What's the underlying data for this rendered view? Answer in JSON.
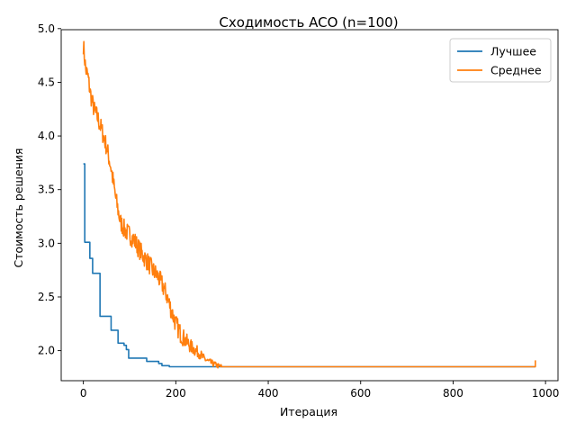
{
  "chart_data": {
    "type": "line",
    "title": "Сходимость ACO (n=100)",
    "xlabel": "Итерация",
    "ylabel": "Стоимость решения",
    "xlim": [
      -48,
      1027
    ],
    "ylim": [
      1.72,
      4.99
    ],
    "xticks": [
      0,
      200,
      400,
      600,
      800,
      1000
    ],
    "yticks": [
      2.0,
      2.5,
      3.0,
      3.5,
      4.0,
      4.5,
      5.0
    ],
    "xtick_labels": [
      "0",
      "200",
      "400",
      "600",
      "800",
      "1000"
    ],
    "ytick_labels": [
      "2.0",
      "2.5",
      "3.0",
      "3.5",
      "4.0",
      "4.5",
      "5.0"
    ],
    "grid": false,
    "legend_position": "top-right",
    "series": [
      {
        "name": "Лучшее",
        "color": "#1f77b4",
        "step": true,
        "x": [
          0,
          3,
          14,
          20,
          33,
          36,
          60,
          75,
          88,
          93,
          98,
          137,
          163,
          170,
          178,
          186,
          978
        ],
        "values": [
          3.74,
          3.01,
          2.86,
          2.72,
          2.72,
          2.32,
          2.19,
          2.07,
          2.05,
          2.01,
          1.93,
          1.9,
          1.88,
          1.86,
          1.86,
          1.85,
          1.85
        ]
      },
      {
        "name": "Среднее",
        "color": "#ff7f0e",
        "step": false,
        "noise": true,
        "x": [
          0,
          5,
          10,
          15,
          20,
          25,
          30,
          40,
          50,
          60,
          70,
          80,
          90,
          100,
          110,
          120,
          130,
          140,
          150,
          160,
          170,
          180,
          190,
          200,
          210,
          220,
          230,
          240,
          250,
          260,
          270,
          280,
          290,
          300,
          310,
          978
        ],
        "values": [
          4.85,
          4.62,
          4.55,
          4.4,
          4.3,
          4.22,
          4.18,
          4.05,
          3.9,
          3.7,
          3.42,
          3.2,
          3.12,
          3.08,
          3.03,
          2.95,
          2.88,
          2.82,
          2.75,
          2.7,
          2.62,
          2.52,
          2.38,
          2.25,
          2.16,
          2.1,
          2.05,
          2.01,
          1.98,
          1.93,
          1.9,
          1.88,
          1.86,
          1.85,
          1.85,
          1.85
        ],
        "end_spike": [
          978,
          1.91
        ]
      }
    ]
  }
}
